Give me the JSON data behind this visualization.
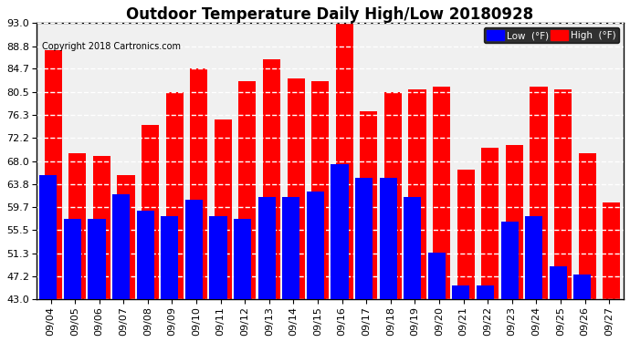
{
  "title": "Outdoor Temperature Daily High/Low 20180928",
  "copyright": "Copyright 2018 Cartronics.com",
  "dates": [
    "09/04",
    "09/05",
    "09/06",
    "09/07",
    "09/08",
    "09/09",
    "09/10",
    "09/11",
    "09/12",
    "09/13",
    "09/14",
    "09/15",
    "09/16",
    "09/17",
    "09/18",
    "09/19",
    "09/20",
    "09/21",
    "09/22",
    "09/23",
    "09/24",
    "09/25",
    "09/26",
    "09/27"
  ],
  "highs": [
    88.0,
    69.5,
    69.0,
    65.5,
    74.5,
    80.5,
    84.7,
    75.5,
    82.5,
    86.5,
    83.0,
    82.5,
    93.0,
    77.0,
    80.5,
    81.0,
    81.5,
    66.5,
    70.5,
    71.0,
    81.5,
    81.0,
    69.5,
    60.5
  ],
  "lows": [
    65.5,
    57.5,
    57.5,
    62.0,
    59.0,
    58.0,
    61.0,
    58.0,
    57.5,
    61.5,
    61.5,
    62.5,
    67.5,
    65.0,
    65.0,
    61.5,
    51.5,
    45.5,
    45.5,
    57.0,
    58.0,
    49.0,
    47.5,
    43.0
  ],
  "high_color": "#ff0000",
  "low_color": "#0000ff",
  "bg_color": "#ffffff",
  "grid_color": "#c0c0c0",
  "yticks": [
    43.0,
    47.2,
    51.3,
    55.5,
    59.7,
    63.8,
    68.0,
    72.2,
    76.3,
    80.5,
    84.7,
    88.8,
    93.0
  ],
  "ylim_min": 43.0,
  "ylim_max": 93.0,
  "bar_width": 0.4,
  "title_fontsize": 12,
  "tick_fontsize": 8,
  "copyright_fontsize": 7
}
